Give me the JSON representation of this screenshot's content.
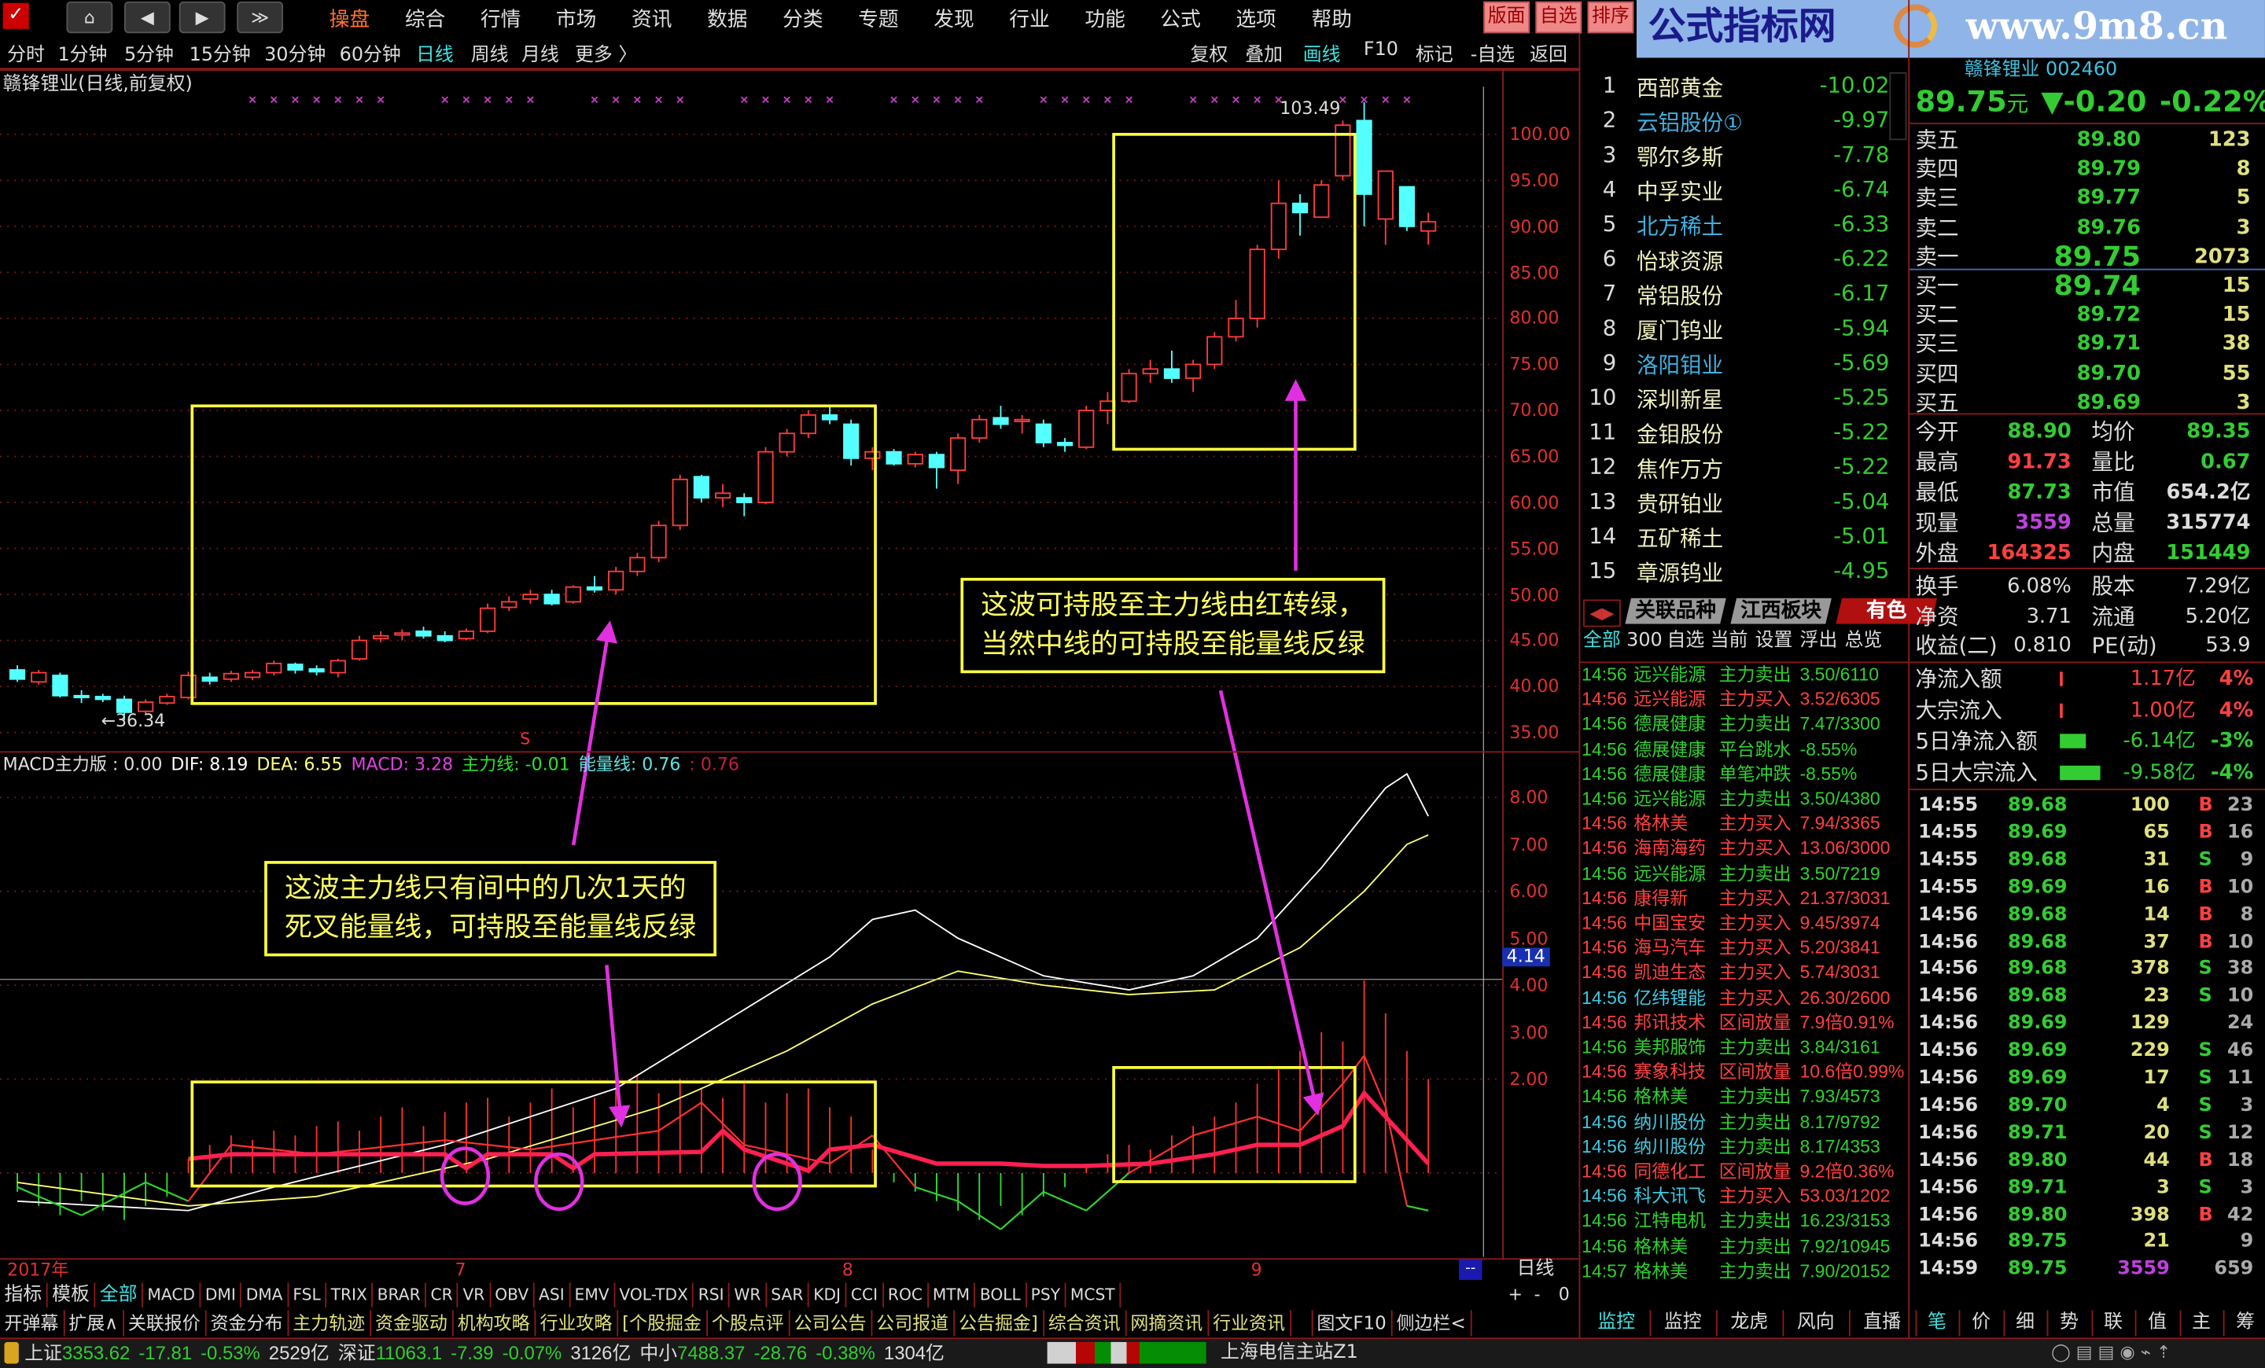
{
  "menu": {
    "items": [
      "操盘",
      "综合",
      "行情",
      "市场",
      "资讯",
      "数据",
      "分类",
      "专题",
      "发现",
      "行业",
      "功能",
      "公式",
      "选项",
      "帮助"
    ],
    "active": 0,
    "right_buttons": [
      "版面",
      "自选",
      "排序"
    ]
  },
  "logo": {
    "text": "公式指标网",
    "url_text": "www.9m8.cn"
  },
  "periods": {
    "items": [
      "分时",
      "1分钟",
      "5分钟",
      "15分钟",
      "30分钟",
      "60分钟",
      "日线",
      "周线",
      "月线",
      "更多 〉"
    ],
    "active": 6
  },
  "tools": {
    "items": [
      "复权",
      "叠加",
      "画线",
      "F10",
      "标记",
      "-自选",
      "返回"
    ],
    "active": 2
  },
  "chart": {
    "title": "赣锋锂业(日线,前复权)",
    "price_axis": [
      "100.00",
      "95.00",
      "90.00",
      "85.00",
      "80.00",
      "75.00",
      "70.00",
      "65.00",
      "60.00",
      "55.00",
      "50.00",
      "45.00",
      "40.00",
      "35.00"
    ],
    "high_label": "103.49",
    "low_label": "←36.34",
    "signal_marker": "S",
    "candles": [
      [
        41.8,
        42.3,
        40.5,
        40.8
      ],
      [
        40.5,
        41.8,
        40.2,
        41.5
      ],
      [
        41.2,
        41.5,
        38.8,
        39.0
      ],
      [
        39.0,
        39.6,
        38.2,
        38.8
      ],
      [
        38.9,
        39.2,
        38.3,
        38.6
      ],
      [
        38.6,
        39.0,
        36.34,
        37.2
      ],
      [
        37.3,
        38.6,
        37.0,
        38.3
      ],
      [
        38.2,
        39.2,
        38.0,
        38.9
      ],
      [
        38.8,
        41.6,
        38.6,
        41.2
      ],
      [
        41.0,
        41.5,
        40.2,
        40.6
      ],
      [
        40.8,
        41.7,
        40.5,
        41.4
      ],
      [
        41.0,
        41.8,
        40.7,
        41.5
      ],
      [
        41.5,
        42.8,
        41.2,
        42.5
      ],
      [
        42.4,
        42.6,
        41.4,
        41.8
      ],
      [
        41.9,
        42.3,
        41.2,
        41.6
      ],
      [
        41.5,
        43.0,
        41.0,
        42.8
      ],
      [
        43.0,
        45.5,
        42.8,
        45.0
      ],
      [
        45.2,
        46.0,
        44.8,
        45.5
      ],
      [
        45.6,
        46.2,
        45.0,
        45.8
      ],
      [
        46.0,
        46.5,
        45.2,
        45.5
      ],
      [
        45.5,
        46.0,
        44.8,
        45.0
      ],
      [
        45.2,
        46.3,
        45.0,
        46.0
      ],
      [
        46.0,
        49.0,
        45.8,
        48.5
      ],
      [
        48.6,
        49.8,
        48.2,
        49.2
      ],
      [
        49.5,
        50.5,
        49.0,
        50.0
      ],
      [
        50.0,
        50.5,
        48.8,
        49.0
      ],
      [
        49.2,
        51.0,
        49.0,
        50.8
      ],
      [
        50.8,
        52.0,
        50.2,
        50.5
      ],
      [
        50.5,
        53.0,
        50.0,
        52.5
      ],
      [
        52.5,
        54.5,
        52.0,
        54.0
      ],
      [
        54.0,
        58.0,
        53.5,
        57.5
      ],
      [
        57.5,
        63.0,
        57.0,
        62.5
      ],
      [
        62.8,
        63.0,
        60.0,
        60.5
      ],
      [
        60.5,
        62.0,
        59.5,
        61.0
      ],
      [
        60.5,
        61.0,
        58.5,
        60.0
      ],
      [
        60.0,
        66.0,
        59.8,
        65.5
      ],
      [
        65.5,
        68.0,
        65.0,
        67.5
      ],
      [
        67.5,
        70.0,
        67.0,
        69.5
      ],
      [
        69.5,
        70.5,
        68.5,
        69.0
      ],
      [
        68.5,
        69.0,
        64.0,
        64.8
      ],
      [
        64.8,
        66.0,
        63.5,
        65.5
      ],
      [
        65.5,
        65.8,
        64.0,
        64.2
      ],
      [
        64.2,
        65.5,
        63.8,
        65.2
      ],
      [
        65.2,
        65.5,
        61.5,
        63.8
      ],
      [
        63.5,
        67.5,
        62.0,
        67.0
      ],
      [
        67.0,
        69.5,
        66.5,
        69.0
      ],
      [
        69.2,
        70.5,
        68.0,
        68.5
      ],
      [
        68.8,
        69.5,
        67.5,
        69.0
      ],
      [
        68.5,
        69.0,
        66.0,
        66.5
      ],
      [
        66.5,
        67.0,
        65.5,
        66.2
      ],
      [
        66.0,
        70.5,
        65.8,
        70.0
      ],
      [
        70.0,
        72.0,
        68.5,
        71.0
      ],
      [
        71.0,
        74.5,
        70.8,
        74.0
      ],
      [
        74.0,
        75.5,
        73.0,
        74.5
      ],
      [
        74.5,
        76.5,
        73.0,
        73.5
      ],
      [
        73.5,
        75.5,
        72.0,
        75.0
      ],
      [
        75.0,
        78.5,
        74.5,
        78.0
      ],
      [
        78.0,
        82.0,
        77.5,
        80.0
      ],
      [
        80.0,
        88.0,
        79.0,
        87.5
      ],
      [
        87.5,
        95.0,
        86.5,
        92.5
      ],
      [
        92.5,
        93.5,
        89.0,
        91.5
      ],
      [
        91.0,
        95.0,
        91.0,
        94.5
      ],
      [
        95.5,
        101.5,
        95.0,
        101.0
      ],
      [
        101.5,
        103.49,
        90.0,
        93.5
      ],
      [
        90.8,
        96.0,
        88.0,
        96.0
      ],
      [
        94.3,
        94.3,
        89.5,
        90.0
      ],
      [
        89.5,
        91.5,
        88.0,
        90.5
      ]
    ],
    "colors": {
      "up": "#ff3c3c",
      "down": "#54ffff",
      "box": "#ffff40",
      "arrow": "#e030e0"
    }
  },
  "macd": {
    "legend": [
      {
        "t": "MACD主力版 : 0.00",
        "c": "#e0e0e0"
      },
      {
        "t": "DIF: 8.19",
        "c": "#ffffff"
      },
      {
        "t": "DEA: 6.55",
        "c": "#ffff80"
      },
      {
        "t": "MACD: 3.28",
        "c": "#e040e0"
      },
      {
        "t": "主力线: -0.01",
        "c": "#30e030"
      },
      {
        "t": "能量线: 0.76",
        "c": "#60e0e0"
      },
      {
        "t": ": 0.76",
        "c": "#c02040"
      }
    ],
    "axis": [
      "8.00",
      "7.00",
      "6.00",
      "5.00",
      "4.00",
      "3.00",
      "2.00"
    ],
    "cursor_value": "4.14",
    "dif": [
      [
        0,
        -0.6
      ],
      [
        8,
        -0.8
      ],
      [
        12,
        -0.3
      ],
      [
        20,
        0.6
      ],
      [
        28,
        1.8
      ],
      [
        33,
        3.2
      ],
      [
        38,
        4.6
      ],
      [
        40,
        5.4
      ],
      [
        42,
        5.6
      ],
      [
        44,
        5.0
      ],
      [
        48,
        4.2
      ],
      [
        52,
        3.9
      ],
      [
        55,
        4.2
      ],
      [
        58,
        5.0
      ],
      [
        61,
        6.5
      ],
      [
        64,
        8.2
      ],
      [
        65,
        8.5
      ],
      [
        66,
        7.6
      ]
    ],
    "dea": [
      [
        0,
        -0.2
      ],
      [
        8,
        -0.7
      ],
      [
        14,
        -0.5
      ],
      [
        22,
        0.3
      ],
      [
        30,
        1.4
      ],
      [
        36,
        2.6
      ],
      [
        40,
        3.6
      ],
      [
        44,
        4.3
      ],
      [
        48,
        4.0
      ],
      [
        52,
        3.8
      ],
      [
        56,
        3.9
      ],
      [
        60,
        4.8
      ],
      [
        63,
        6.0
      ],
      [
        65,
        7.0
      ],
      [
        66,
        7.2
      ]
    ],
    "energy": [
      [
        8,
        0.3
      ],
      [
        10,
        0.4
      ],
      [
        20,
        0.4
      ],
      [
        21,
        0.1
      ],
      [
        22,
        0.4
      ],
      [
        25,
        0.4
      ],
      [
        26,
        0.1
      ],
      [
        27,
        0.4
      ],
      [
        32,
        0.45
      ],
      [
        33,
        0.9
      ],
      [
        34,
        0.5
      ],
      [
        36,
        0.2
      ],
      [
        37,
        0.05
      ],
      [
        38,
        0.5
      ],
      [
        40,
        0.6
      ],
      [
        43,
        0.2
      ],
      [
        46,
        0.2
      ],
      [
        48,
        0.15
      ],
      [
        50,
        0.15
      ],
      [
        53,
        0.2
      ],
      [
        56,
        0.4
      ],
      [
        58,
        0.6
      ],
      [
        60,
        0.6
      ],
      [
        62,
        1.0
      ],
      [
        63,
        1.7
      ],
      [
        64,
        1.2
      ],
      [
        66,
        0.2
      ]
    ],
    "main": [
      [
        0,
        -0.3
      ],
      [
        3,
        -0.9
      ],
      [
        6,
        -0.2
      ],
      [
        8,
        -0.6
      ],
      [
        10,
        0.6
      ],
      [
        14,
        0.4
      ],
      [
        20,
        0.7
      ],
      [
        24,
        0.5
      ],
      [
        30,
        0.9
      ],
      [
        32,
        1.5
      ],
      [
        34,
        0.6
      ],
      [
        38,
        0.2
      ],
      [
        40,
        0.8
      ],
      [
        42,
        -0.3
      ],
      [
        44,
        -0.6
      ],
      [
        46,
        -1.2
      ],
      [
        48,
        -0.4
      ],
      [
        50,
        -0.8
      ],
      [
        52,
        0
      ],
      [
        55,
        0.8
      ],
      [
        58,
        1.2
      ],
      [
        60,
        0.9
      ],
      [
        62,
        1.9
      ],
      [
        63,
        2.5
      ],
      [
        64,
        1.4
      ],
      [
        65,
        -0.7
      ],
      [
        66,
        -0.8
      ]
    ],
    "hist": [
      -0.4,
      -0.7,
      -0.9,
      -0.6,
      -0.8,
      -1.0,
      -0.7,
      -0.5,
      0.3,
      0.6,
      0.8,
      0.7,
      0.9,
      0.8,
      1.0,
      1.1,
      0.9,
      1.2,
      1.4,
      1.0,
      1.3,
      1.5,
      1.6,
      1.2,
      1.5,
      1.8,
      1.4,
      1.6,
      1.9,
      2.1,
      1.7,
      2.0,
      1.8,
      1.6,
      1.9,
      1.5,
      1.7,
      1.8,
      1.4,
      1.2,
      0.5,
      -0.2,
      -0.4,
      -0.6,
      -0.8,
      -1.0,
      -0.7,
      -0.9,
      -0.5,
      -0.3,
      0.2,
      0.4,
      0.6,
      0.5,
      0.8,
      1.0,
      1.2,
      1.5,
      1.9,
      2.2,
      2.6,
      3.0,
      2.8,
      4.1,
      3.4,
      2.6,
      2.0
    ]
  },
  "annotations": {
    "right_note": "这波可持股至主力线由红转绿，\n当然中线的可持股至能量线反绿",
    "left_note": "这波主力线只有间中的几次1天的\n死叉能量线，可持股至能量线反绿"
  },
  "date_axis": {
    "labels": [
      "2017年",
      "7",
      "8",
      "9"
    ],
    "period": "日线",
    "zoom": [
      "+",
      "-",
      "0"
    ]
  },
  "rank_list": [
    {
      "n": "1",
      "name": "西部黄金",
      "v": "-10.02"
    },
    {
      "n": "2",
      "name": "云铝股份①",
      "v": "-9.97",
      "hl": true
    },
    {
      "n": "3",
      "name": "鄂尔多斯",
      "v": "-7.78"
    },
    {
      "n": "4",
      "name": "中孚实业",
      "v": "-6.74"
    },
    {
      "n": "5",
      "name": "北方稀土",
      "v": "-6.33",
      "hl": true
    },
    {
      "n": "6",
      "name": "怡球资源",
      "v": "-6.22"
    },
    {
      "n": "7",
      "name": "常铝股份",
      "v": "-6.17"
    },
    {
      "n": "8",
      "name": "厦门钨业",
      "v": "-5.94"
    },
    {
      "n": "9",
      "name": "洛阳钼业",
      "v": "-5.69",
      "hl": true
    },
    {
      "n": "10",
      "name": "深圳新星",
      "v": "-5.25"
    },
    {
      "n": "11",
      "name": "金钼股份",
      "v": "-5.22"
    },
    {
      "n": "12",
      "name": "焦作万方",
      "v": "-5.22"
    },
    {
      "n": "13",
      "name": "贵研铂业",
      "v": "-5.04"
    },
    {
      "n": "14",
      "name": "五矿稀土",
      "v": "-5.01"
    },
    {
      "n": "15",
      "name": "章源钨业",
      "v": "-4.95"
    }
  ],
  "side_tabs": [
    "关联品种",
    "江西板块",
    "有色"
  ],
  "side_subtabs": [
    "全部",
    "300",
    "自选",
    "当前",
    "设置",
    "浮出",
    "总览"
  ],
  "ticker": [
    [
      "14:56",
      "远兴能源",
      "主力卖出",
      "3.50/6110",
      "g",
      "g"
    ],
    [
      "14:56",
      "远兴能源",
      "主力买入",
      "3.52/6305",
      "r",
      "r"
    ],
    [
      "14:56",
      "德展健康",
      "主力卖出",
      "7.47/3300",
      "g",
      "g"
    ],
    [
      "14:56",
      "德展健康",
      "平台跳水",
      "-8.55%",
      "g",
      "g"
    ],
    [
      "14:56",
      "德展健康",
      "单笔冲跌",
      "-8.55%",
      "g",
      "g"
    ],
    [
      "14:56",
      "远兴能源",
      "主力卖出",
      "3.50/4380",
      "g",
      "g"
    ],
    [
      "14:56",
      "格林美",
      "主力买入",
      "7.94/3365",
      "r",
      "r"
    ],
    [
      "14:56",
      "海南海药",
      "主力买入",
      "13.06/3000",
      "r",
      "r"
    ],
    [
      "14:56",
      "远兴能源",
      "主力卖出",
      "3.50/7219",
      "g",
      "g"
    ],
    [
      "14:56",
      "康得新",
      "主力买入",
      "21.37/3031",
      "r",
      "r"
    ],
    [
      "14:56",
      "中国宝安",
      "主力买入",
      "9.45/3974",
      "r",
      "r"
    ],
    [
      "14:56",
      "海马汽车",
      "主力买入",
      "5.20/3841",
      "r",
      "r"
    ],
    [
      "14:56",
      "凯迪生态",
      "主力买入",
      "5.74/3031",
      "r",
      "r"
    ],
    [
      "14:56",
      "亿纬锂能",
      "主力买入",
      "26.30/2600",
      "c",
      "r"
    ],
    [
      "14:56",
      "邦讯技术",
      "区间放量",
      "7.9倍0.91%",
      "r",
      "r"
    ],
    [
      "14:56",
      "美邦服饰",
      "主力卖出",
      "3.84/3161",
      "g",
      "g"
    ],
    [
      "14:56",
      "赛象科技",
      "区间放量",
      "10.6倍0.99%",
      "r",
      "r"
    ],
    [
      "14:56",
      "格林美",
      "主力卖出",
      "7.93/4573",
      "g",
      "g"
    ],
    [
      "14:56",
      "纳川股份",
      "主力卖出",
      "8.17/9792",
      "c",
      "g"
    ],
    [
      "14:56",
      "纳川股份",
      "主力卖出",
      "8.17/4353",
      "c",
      "g"
    ],
    [
      "14:56",
      "同德化工",
      "区间放量",
      "9.2倍0.36%",
      "r",
      "r"
    ],
    [
      "14:56",
      "科大讯飞",
      "主力买入",
      "53.03/1202",
      "c",
      "r"
    ],
    [
      "14:56",
      "江特电机",
      "主力卖出",
      "16.23/3153",
      "g",
      "g"
    ],
    [
      "14:56",
      "格林美",
      "主力卖出",
      "7.92/10945",
      "g",
      "g"
    ],
    [
      "14:57",
      "格林美",
      "主力卖出",
      "7.90/20152",
      "g",
      "g"
    ]
  ],
  "quote": {
    "name": "赣锋锂业",
    "code": "002460",
    "price": "89.75",
    "unit": "元",
    "change": "▼-0.20",
    "pct": "-0.22%",
    "asks": [
      [
        "卖五",
        "89.80",
        "123"
      ],
      [
        "卖四",
        "89.79",
        "8"
      ],
      [
        "卖三",
        "89.77",
        "5"
      ],
      [
        "卖二",
        "89.76",
        "3"
      ],
      [
        "卖一",
        "89.75",
        "2073"
      ]
    ],
    "bids": [
      [
        "买一",
        "89.74",
        "15"
      ],
      [
        "买二",
        "89.72",
        "15"
      ],
      [
        "买三",
        "89.71",
        "38"
      ],
      [
        "买四",
        "89.70",
        "55"
      ],
      [
        "买五",
        "89.69",
        "3"
      ]
    ],
    "stats": [
      [
        "今开",
        "88.90",
        "g",
        "均价",
        "89.35",
        "g"
      ],
      [
        "最高",
        "91.73",
        "r",
        "量比",
        "0.67",
        "g"
      ],
      [
        "最低",
        "87.73",
        "g",
        "市值",
        "654.2亿",
        "w"
      ],
      [
        "现量",
        "3559",
        "m",
        "总量",
        "315774",
        "w"
      ],
      [
        "外盘",
        "164325",
        "r",
        "内盘",
        "151449",
        "g"
      ]
    ],
    "fund": [
      [
        "换手",
        "6.08%",
        "股本",
        "7.29亿"
      ],
      [
        "净资",
        "3.71",
        "流通",
        "5.20亿"
      ],
      [
        "收益(二)",
        "0.810",
        "PE(动)",
        "53.9"
      ]
    ],
    "flows": [
      [
        "净流入额",
        "1.17亿",
        "4%",
        "r",
        2
      ],
      [
        "大宗流入",
        "1.00亿",
        "4%",
        "r",
        2
      ],
      [
        "5日净流入额",
        "-6.14亿",
        "-3%",
        "g",
        18
      ],
      [
        "5日大宗流入",
        "-9.58亿",
        "-4%",
        "g",
        28
      ]
    ]
  },
  "trades": [
    [
      "14:55",
      "89.68",
      "100",
      "B",
      "23"
    ],
    [
      "14:55",
      "89.69",
      "65",
      "B",
      "16"
    ],
    [
      "14:55",
      "89.68",
      "31",
      "S",
      "9"
    ],
    [
      "14:55",
      "89.69",
      "16",
      "B",
      "10"
    ],
    [
      "14:56",
      "89.68",
      "14",
      "B",
      "8"
    ],
    [
      "14:56",
      "89.68",
      "37",
      "B",
      "10"
    ],
    [
      "14:56",
      "89.68",
      "378",
      "S",
      "38"
    ],
    [
      "14:56",
      "89.68",
      "23",
      "S",
      "10"
    ],
    [
      "14:56",
      "89.69",
      "129",
      "",
      "24"
    ],
    [
      "14:56",
      "89.69",
      "229",
      "S",
      "46"
    ],
    [
      "14:56",
      "89.69",
      "17",
      "S",
      "11"
    ],
    [
      "14:56",
      "89.70",
      "4",
      "S",
      "3"
    ],
    [
      "14:56",
      "89.71",
      "20",
      "S",
      "12"
    ],
    [
      "14:56",
      "89.80",
      "44",
      "B",
      "18"
    ],
    [
      "14:56",
      "89.71",
      "3",
      "S",
      "3"
    ],
    [
      "14:56",
      "89.80",
      "398",
      "B",
      "42"
    ],
    [
      "14:56",
      "89.75",
      "21",
      "",
      "9"
    ],
    [
      "14:59",
      "89.75",
      "3559",
      "",
      "659"
    ]
  ],
  "indicator_tabs": [
    "指标",
    "模板",
    "全部",
    "MACD",
    "DMI",
    "DMA",
    "FSL",
    "TRIX",
    "BRAR",
    "CR",
    "VR",
    "OBV",
    "ASI",
    "EMV",
    "VOL-TDX",
    "RSI",
    "WR",
    "SAR",
    "KDJ",
    "CCI",
    "ROC",
    "MTM",
    "BOLL",
    "PSY",
    "MCST"
  ],
  "func_tabs": [
    "开弹幕",
    "扩展∧",
    "关联报价",
    "资金分布",
    "主力轨迹",
    "资金驱动",
    "机构攻略",
    "行业攻略",
    "[个股掘金",
    "个股点评",
    "公司公告",
    "公司报道",
    "公告掘金]",
    "综合资讯",
    "网摘资讯",
    "行业资讯",
    "",
    "图文F10",
    "侧边栏<"
  ],
  "right_func_tabs": [
    "监控",
    "监控",
    "龙虎",
    "风向",
    "直播",
    "笔",
    "价",
    "细",
    "势",
    "联",
    "值",
    "主",
    "筹"
  ],
  "status": {
    "sh_label": "上证",
    "sh": "3353.62",
    "sh_chg": "-17.81",
    "sh_pct": "-0.53%",
    "sh_amt": "2529亿",
    "sz_label": "深证",
    "sz": "11063.1",
    "sz_chg": "-7.39",
    "sz_pct": "-0.07%",
    "sz_amt": "3126亿",
    "zx_label": "中小",
    "zx": "7488.37",
    "zx_chg": "-28.76",
    "zx_pct": "-0.38%",
    "zx_amt": "1304亿",
    "server": "上海电信主站Z1"
  }
}
